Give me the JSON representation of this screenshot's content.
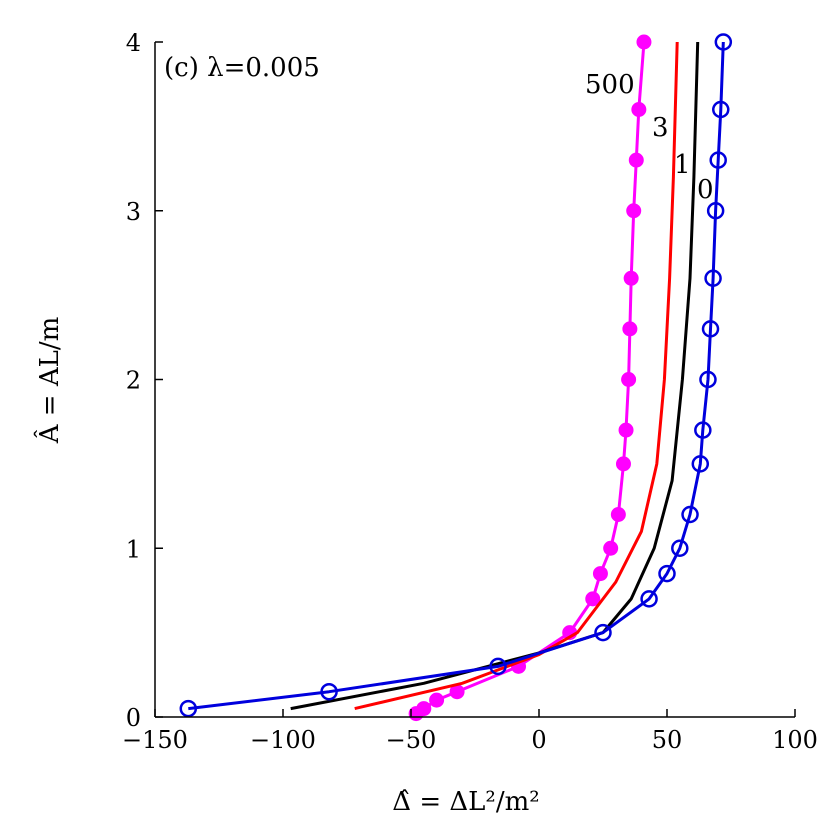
{
  "chart_data": {
    "type": "line",
    "annotation": "(c) λ=0.005",
    "xlabel": "Δ̂ = ΔL²/m²",
    "ylabel": "Â = AL/m",
    "xlim": [
      -150,
      100
    ],
    "ylim": [
      0,
      4
    ],
    "xticks": [
      -150,
      -100,
      -50,
      0,
      50,
      100
    ],
    "xtick_labels": [
      "−150",
      "−100",
      "−50",
      "0",
      "50",
      "100"
    ],
    "yticks": [
      0,
      1,
      2,
      3,
      4
    ],
    "ytick_labels": [
      "0",
      "1",
      "2",
      "3",
      "4"
    ],
    "grid": false,
    "series": [
      {
        "label": "500",
        "color": "#ff00ff",
        "marker": "filled-circle",
        "points": [
          [
            -48,
            0.02
          ],
          [
            -45,
            0.05
          ],
          [
            -40,
            0.1
          ],
          [
            -32,
            0.15
          ],
          [
            -8,
            0.3
          ],
          [
            12,
            0.5
          ],
          [
            21,
            0.7
          ],
          [
            24,
            0.85
          ],
          [
            28,
            1.0
          ],
          [
            31,
            1.2
          ],
          [
            33,
            1.5
          ],
          [
            34,
            1.7
          ],
          [
            35,
            2.0
          ],
          [
            35.5,
            2.3
          ],
          [
            36,
            2.6
          ],
          [
            37,
            3.0
          ],
          [
            38,
            3.3
          ],
          [
            39,
            3.6
          ],
          [
            41,
            4.0
          ]
        ]
      },
      {
        "label": "3",
        "color": "#ff0000",
        "marker": "none",
        "points": [
          [
            -72,
            0.05
          ],
          [
            -30,
            0.2
          ],
          [
            0,
            0.37
          ],
          [
            15,
            0.5
          ],
          [
            30,
            0.8
          ],
          [
            40,
            1.1
          ],
          [
            46,
            1.5
          ],
          [
            49,
            2.0
          ],
          [
            51,
            2.6
          ],
          [
            52.5,
            3.2
          ],
          [
            54,
            4.0
          ]
        ]
      },
      {
        "label": "1",
        "color": "#000000",
        "marker": "none",
        "points": [
          [
            -97,
            0.05
          ],
          [
            -45,
            0.2
          ],
          [
            0,
            0.38
          ],
          [
            25,
            0.5
          ],
          [
            36,
            0.7
          ],
          [
            45,
            1.0
          ],
          [
            52,
            1.4
          ],
          [
            56,
            2.0
          ],
          [
            59,
            2.6
          ],
          [
            60.5,
            3.2
          ],
          [
            62,
            4.0
          ]
        ]
      },
      {
        "label": "0",
        "color": "#0000dd",
        "marker": "open-circle",
        "points": [
          [
            -137,
            0.05
          ],
          [
            -82,
            0.15
          ],
          [
            -16,
            0.3
          ],
          [
            25,
            0.5
          ],
          [
            43,
            0.7
          ],
          [
            50,
            0.85
          ],
          [
            55,
            1.0
          ],
          [
            59,
            1.2
          ],
          [
            63,
            1.5
          ],
          [
            64,
            1.7
          ],
          [
            66,
            2.0
          ],
          [
            67,
            2.3
          ],
          [
            68,
            2.6
          ],
          [
            69,
            3.0
          ],
          [
            70,
            3.3
          ],
          [
            71,
            3.6
          ],
          [
            72,
            4.0
          ]
        ]
      }
    ]
  }
}
